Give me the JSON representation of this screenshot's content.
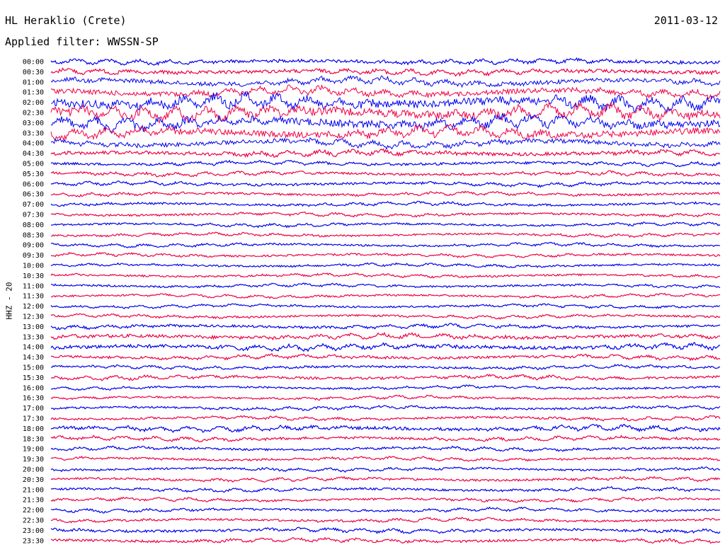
{
  "header": {
    "station": "HL Heraklio (Crete)",
    "date": "2011-03-12",
    "filter": "Applied filter: WWSSN-SP",
    "channel": "HHZ - 20"
  },
  "chart_data": {
    "type": "line",
    "title": "HL Heraklio (Crete)",
    "subtitle": "Applied filter: WWSSN-SP",
    "ylabel": "HHZ - 20",
    "xlabel": "",
    "grid": false,
    "rows": [
      "00:00",
      "00:30",
      "01:00",
      "01:30",
      "02:00",
      "02:30",
      "03:00",
      "03:30",
      "04:00",
      "04:30",
      "05:00",
      "05:30",
      "06:00",
      "06:30",
      "07:00",
      "07:30",
      "08:00",
      "08:30",
      "09:00",
      "09:30",
      "10:00",
      "10:30",
      "11:00",
      "11:30",
      "12:00",
      "12:30",
      "13:00",
      "13:30",
      "14:00",
      "14:30",
      "15:00",
      "15:30",
      "16:00",
      "16:30",
      "17:00",
      "17:30",
      "18:00",
      "18:30",
      "19:00",
      "19:30",
      "20:00",
      "20:30",
      "21:00",
      "21:30",
      "22:00",
      "22:30",
      "23:00",
      "23:30"
    ],
    "trace_colors": [
      "#0000ee",
      "#ee0044"
    ],
    "row_activity": [
      0.3,
      0.35,
      0.45,
      0.55,
      1.0,
      1.0,
      0.9,
      0.75,
      0.45,
      0.35,
      0.2,
      0.2,
      0.18,
      0.15,
      0.15,
      0.15,
      0.13,
      0.12,
      0.13,
      0.12,
      0.12,
      0.12,
      0.12,
      0.12,
      0.12,
      0.12,
      0.2,
      0.3,
      0.35,
      0.2,
      0.15,
      0.2,
      0.12,
      0.12,
      0.15,
      0.15,
      0.3,
      0.2,
      0.15,
      0.15,
      0.15,
      0.15,
      0.15,
      0.15,
      0.15,
      0.15,
      0.2,
      0.2
    ]
  }
}
